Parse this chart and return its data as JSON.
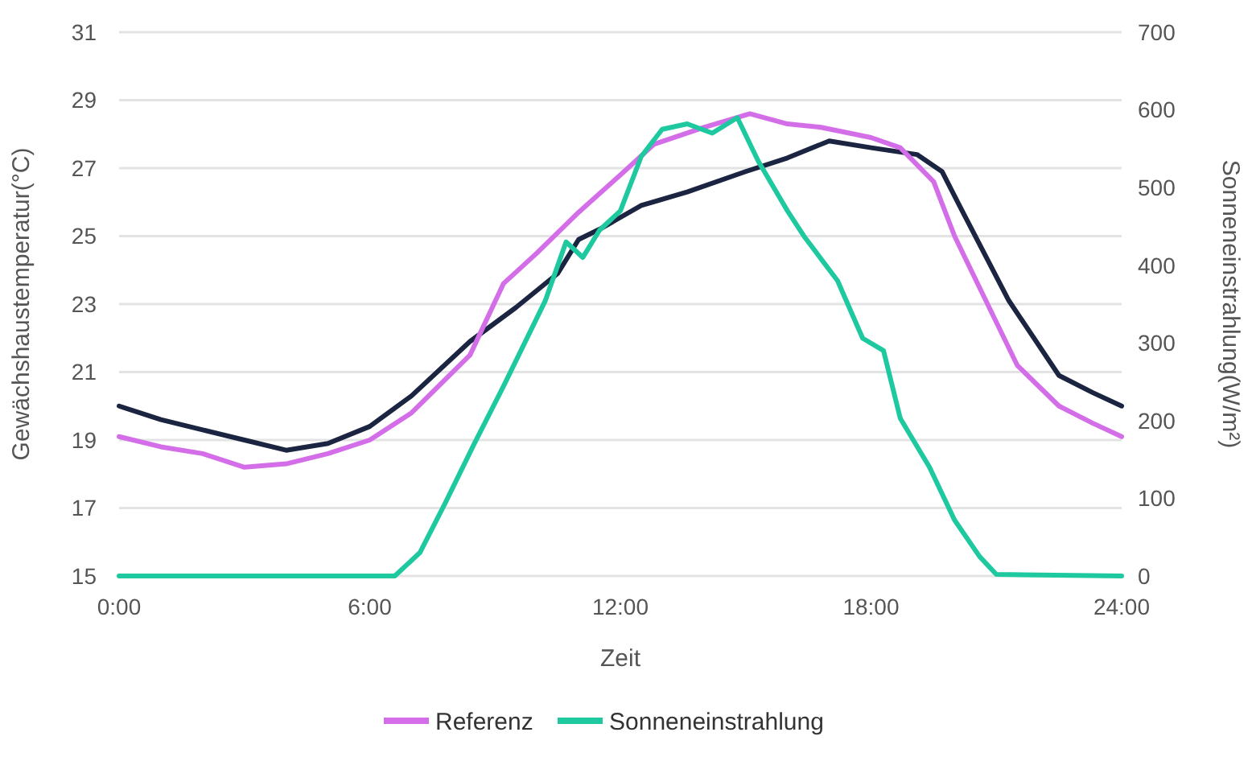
{
  "chart_data": {
    "type": "line",
    "xlabel": "Zeit",
    "ylabel": "Gewächshaustemperatur(°C)",
    "y2label": "Sonneneinstrahlung(W/m²)",
    "xlim": [
      0,
      24
    ],
    "xticks": [
      {
        "value": 0,
        "label": "0:00"
      },
      {
        "value": 6,
        "label": "6:00"
      },
      {
        "value": 12,
        "label": "12:00"
      },
      {
        "value": 18,
        "label": "18:00"
      },
      {
        "value": 24,
        "label": "24:00"
      }
    ],
    "ylim": [
      15,
      31
    ],
    "yticks": [
      15,
      17,
      19,
      21,
      23,
      25,
      27,
      29,
      31
    ],
    "y2lim": [
      0,
      700
    ],
    "y2ticks": [
      0,
      100,
      200,
      300,
      400,
      500,
      600,
      700
    ],
    "grid": "y",
    "legend": "bottom",
    "line_style": "solid",
    "marker": "none",
    "series": [
      {
        "color": "#1b2440",
        "x": [
          0,
          1,
          2,
          3,
          4,
          5,
          6,
          7,
          8.4,
          9.5,
          10.5,
          11,
          11.5,
          12.5,
          13.6,
          15,
          16,
          17,
          18,
          19.1,
          19.7,
          20.2,
          21.3,
          22.5,
          23.3,
          24
        ],
        "values": [
          20.0,
          19.6,
          19.3,
          19.0,
          18.7,
          18.9,
          19.4,
          20.3,
          21.9,
          22.9,
          23.9,
          24.9,
          25.2,
          25.9,
          26.3,
          26.9,
          27.3,
          27.8,
          27.6,
          27.4,
          26.9,
          25.7,
          23.1,
          20.9,
          20.4,
          20.0
        ]
      },
      {
        "name": "Referenz",
        "color": "#d46ee8",
        "x": [
          0,
          1,
          2,
          3,
          4,
          5,
          6,
          7,
          8.4,
          9.2,
          10,
          11,
          12,
          12.8,
          14,
          15.1,
          16,
          16.8,
          18,
          18.7,
          19.5,
          20,
          21.5,
          22.5,
          23.3,
          24
        ],
        "values": [
          19.1,
          18.8,
          18.6,
          18.2,
          18.3,
          18.6,
          19.0,
          19.8,
          21.5,
          23.6,
          24.5,
          25.7,
          26.8,
          27.7,
          28.2,
          28.6,
          28.3,
          28.2,
          27.9,
          27.6,
          26.6,
          25.0,
          21.2,
          20.0,
          19.5,
          19.1
        ]
      },
      {
        "name": "Sonneneinstrahlung",
        "color": "#1fc9a0",
        "axis": "y2",
        "x": [
          0,
          6.6,
          7.2,
          7.8,
          8.5,
          9.2,
          10.2,
          10.7,
          11.1,
          11.5,
          12,
          12.5,
          13,
          13.6,
          14.2,
          14.8,
          15.3,
          16,
          16.4,
          17.2,
          17.8,
          18.3,
          18.7,
          19.4,
          20,
          20.6,
          21,
          24
        ],
        "values": [
          0,
          0,
          30,
          93,
          170,
          244,
          354,
          430,
          410,
          445,
          470,
          540,
          575,
          582,
          570,
          590,
          534,
          470,
          437,
          380,
          306,
          290,
          203,
          140,
          72,
          25,
          2,
          0
        ]
      }
    ]
  }
}
